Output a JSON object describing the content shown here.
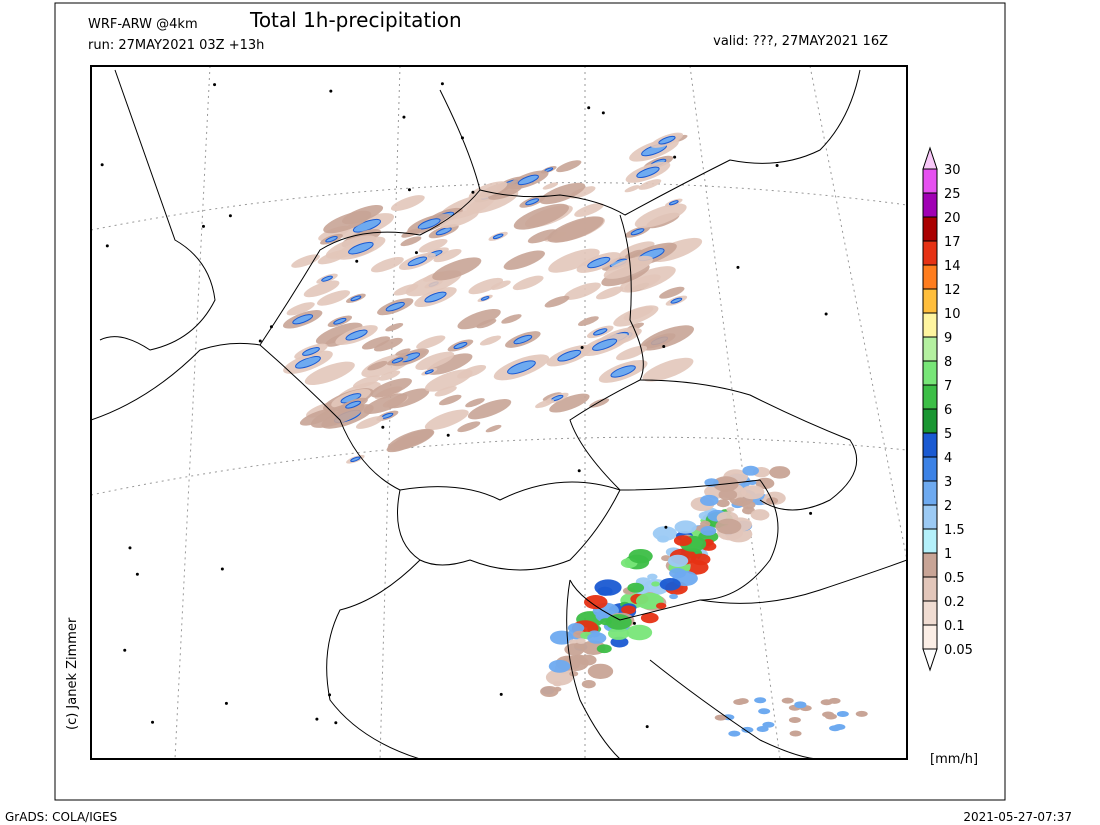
{
  "header": {
    "model": "WRF-ARW @4km",
    "title": "Total 1h-precipitation",
    "run": "run: 27MAY2021 03Z +13h",
    "valid": "valid: ???, 27MAY2021 16Z"
  },
  "credit": "(c) Janek Zimmer",
  "legend": {
    "unit": "[mm/h]",
    "below_color": "#ffffff",
    "above_color": "#f8c8f8",
    "levels": [
      {
        "label": "0.05",
        "color": "#fbeee6"
      },
      {
        "label": "0.1",
        "color": "#f0dcd2"
      },
      {
        "label": "0.2",
        "color": "#e2c6ba"
      },
      {
        "label": "0.5",
        "color": "#c8a496"
      },
      {
        "label": "1",
        "color": "#b4f0fa"
      },
      {
        "label": "1.5",
        "color": "#9ccaf4"
      },
      {
        "label": "2",
        "color": "#6eaaf0"
      },
      {
        "label": "3",
        "color": "#3c82e6"
      },
      {
        "label": "4",
        "color": "#1a5ad2"
      },
      {
        "label": "5",
        "color": "#1a9632"
      },
      {
        "label": "6",
        "color": "#3cbe46"
      },
      {
        "label": "7",
        "color": "#78e678"
      },
      {
        "label": "8",
        "color": "#b4f0a0"
      },
      {
        "label": "9",
        "color": "#fff5a0"
      },
      {
        "label": "10",
        "color": "#ffbe3c"
      },
      {
        "label": "12",
        "color": "#ff7d1e"
      },
      {
        "label": "14",
        "color": "#e63214"
      },
      {
        "label": "17",
        "color": "#aa0000"
      },
      {
        "label": "20",
        "color": "#a000b4"
      },
      {
        "label": "25",
        "color": "#e650f0"
      },
      {
        "label": "30",
        "color": "#f8b4f8"
      }
    ]
  },
  "footer": {
    "left": "GrADS: COLA/IGES",
    "right": "2021-05-27-07:37"
  }
}
